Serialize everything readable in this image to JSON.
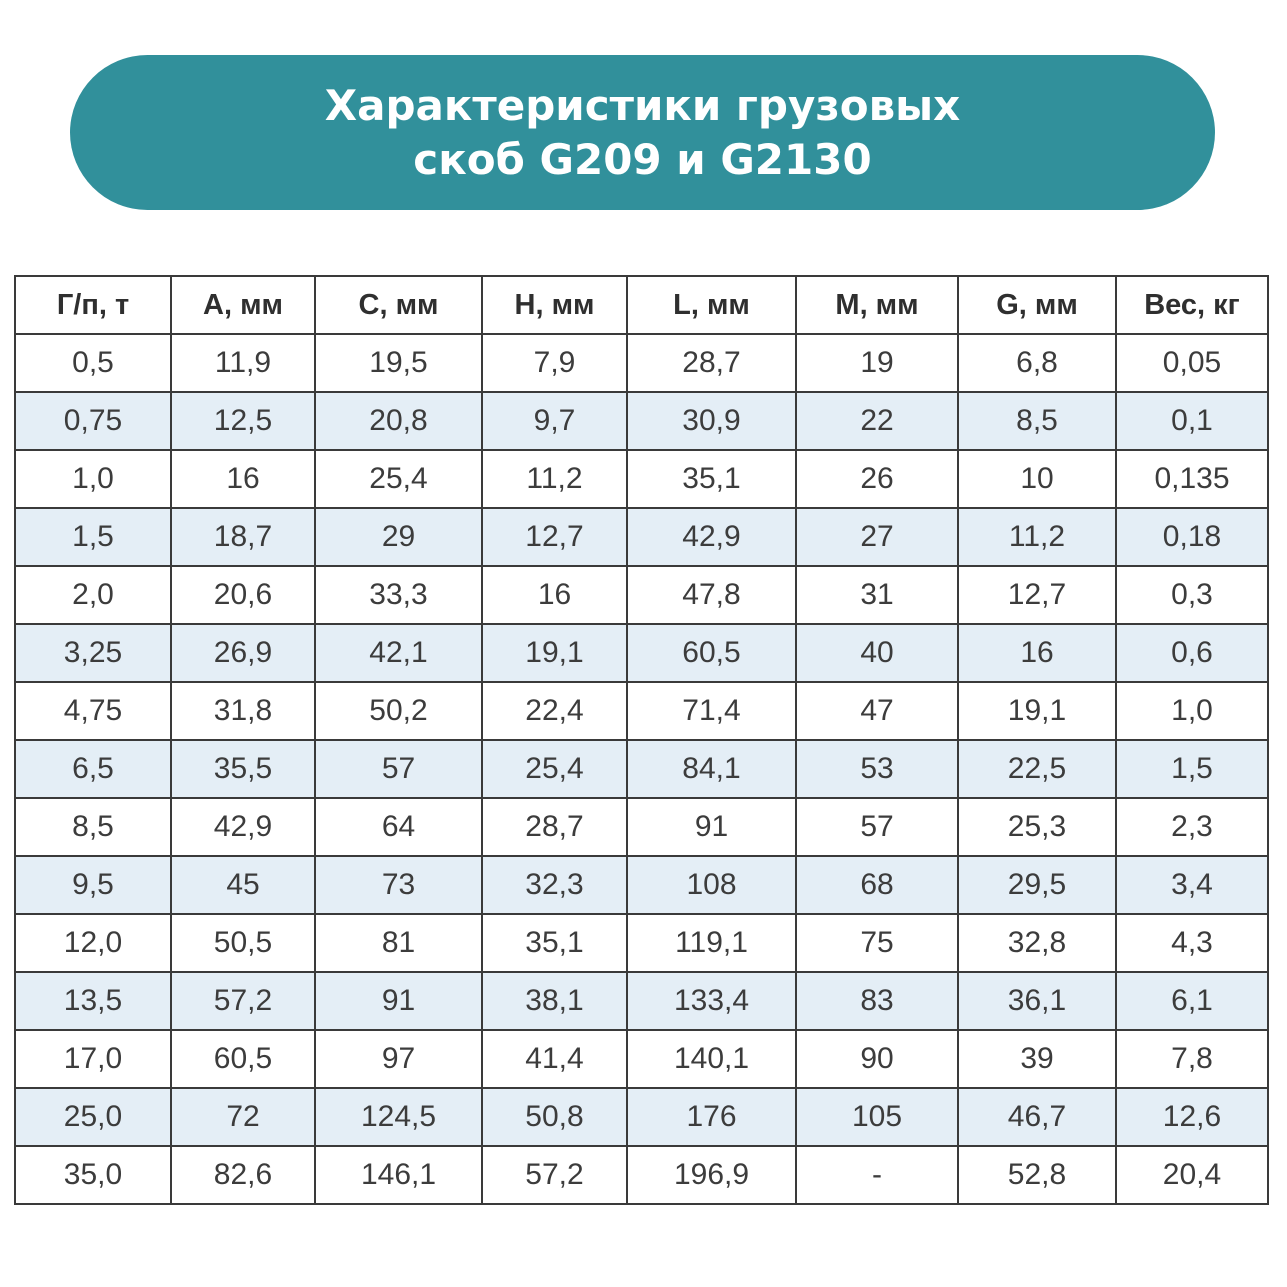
{
  "header": {
    "title": [
      "Характеристики грузовых",
      "скоб G209 и G2130"
    ]
  },
  "table": {
    "header": [
      "Г/п, т",
      "А, мм",
      "С, мм",
      "Н, мм",
      "L, мм",
      "М, мм",
      "G, мм",
      "Вес, кг"
    ],
    "rows": [
      [
        "0,5",
        "11,9",
        "19,5",
        "7,9",
        "28,7",
        "19",
        "6,8",
        "0,05"
      ],
      [
        "0,75",
        "12,5",
        "20,8",
        "9,7",
        "30,9",
        "22",
        "8,5",
        "0,1"
      ],
      [
        "1,0",
        "16",
        "25,4",
        "11,2",
        "35,1",
        "26",
        "10",
        "0,135"
      ],
      [
        "1,5",
        "18,7",
        "29",
        "12,7",
        "42,9",
        "27",
        "11,2",
        "0,18"
      ],
      [
        "2,0",
        "20,6",
        "33,3",
        "16",
        "47,8",
        "31",
        "12,7",
        "0,3"
      ],
      [
        "3,25",
        "26,9",
        "42,1",
        "19,1",
        "60,5",
        "40",
        "16",
        "0,6"
      ],
      [
        "4,75",
        "31,8",
        "50,2",
        "22,4",
        "71,4",
        "47",
        "19,1",
        "1,0"
      ],
      [
        "6,5",
        "35,5",
        "57",
        "25,4",
        "84,1",
        "53",
        "22,5",
        "1,5"
      ],
      [
        "8,5",
        "42,9",
        "64",
        "28,7",
        "91",
        "57",
        "25,3",
        "2,3"
      ],
      [
        "9,5",
        "45",
        "73",
        "32,3",
        "108",
        "68",
        "29,5",
        "3,4"
      ],
      [
        "12,0",
        "50,5",
        "81",
        "35,1",
        "119,1",
        "75",
        "32,8",
        "4,3"
      ],
      [
        "13,5",
        "57,2",
        "91",
        "38,1",
        "133,4",
        "83",
        "36,1",
        "6,1"
      ],
      [
        "17,0",
        "60,5",
        "97",
        "41,4",
        "140,1",
        "90",
        "39",
        "7,8"
      ],
      [
        "25,0",
        "72",
        "124,5",
        "50,8",
        "176",
        "105",
        "46,7",
        "12,6"
      ],
      [
        "35,0",
        "82,6",
        "146,1",
        "57,2",
        "196,9",
        "-",
        "52,8",
        "20,4"
      ]
    ]
  }
}
